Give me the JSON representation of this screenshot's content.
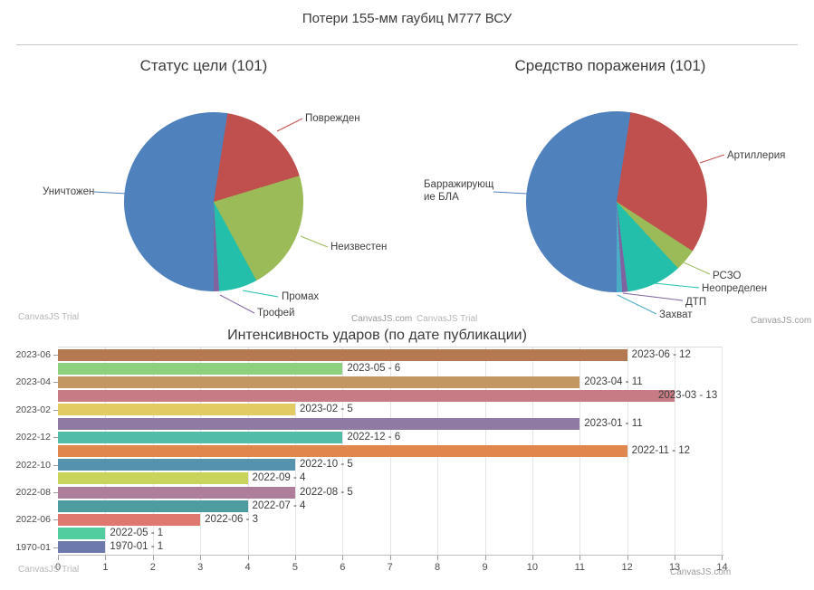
{
  "page": {
    "title": "Потери 155-мм гаубиц M777 ВСУ"
  },
  "watermarks": {
    "trial": "CanvasJS Trial",
    "site": "CanvasJS.com"
  },
  "chart_data": [
    {
      "type": "pie",
      "title": "Статус цели (101)",
      "total": 101,
      "start_angle_deg": 180,
      "legend_position": "none",
      "slices": [
        {
          "label": "Уничтожен",
          "value": 53,
          "color": "#4F81BC"
        },
        {
          "label": "Поврежден",
          "value": 18,
          "color": "#C0504E"
        },
        {
          "label": "Неизвестен",
          "value": 22,
          "color": "#9BBB58"
        },
        {
          "label": "Промах",
          "value": 7,
          "color": "#23BFAA"
        },
        {
          "label": "Трофей",
          "value": 1,
          "color": "#8064A1"
        }
      ]
    },
    {
      "type": "pie",
      "title": "Средство поражения (101)",
      "total": 101,
      "start_angle_deg": 180,
      "legend_position": "none",
      "slices": [
        {
          "label": "Барражирующие БЛА",
          "value": 53,
          "color": "#4F81BC"
        },
        {
          "label": "Артиллерия",
          "value": 32,
          "color": "#C0504E"
        },
        {
          "label": "РСЗО",
          "value": 4,
          "color": "#9BBB58"
        },
        {
          "label": "Неопределен",
          "value": 10,
          "color": "#23BFAA"
        },
        {
          "label": "ДТП",
          "value": 1,
          "color": "#8064A1"
        },
        {
          "label": "Захват",
          "value": 1,
          "color": "#4AACC5"
        }
      ]
    },
    {
      "type": "bar",
      "title": "Интенсивность ударов (по дате публикации)",
      "xlabel": "",
      "ylabel": "",
      "xlim": [
        0,
        14
      ],
      "grid": true,
      "x_ticks": [
        0,
        1,
        2,
        3,
        4,
        5,
        6,
        7,
        8,
        9,
        10,
        11,
        12,
        13,
        14
      ],
      "y_axis_labels": [
        "2023-06",
        "2023-04",
        "2023-02",
        "2022-12",
        "2022-10",
        "2022-08",
        "2022-06",
        "1970-01"
      ],
      "bars": [
        {
          "category": "2023-06",
          "value": 12,
          "label": "2023-06 - 12",
          "color": "#B57952"
        },
        {
          "category": "2023-05",
          "value": 6,
          "label": "2023-05 - 6",
          "color": "#8DD17E"
        },
        {
          "category": "2023-04",
          "value": 11,
          "label": "2023-04 - 11",
          "color": "#C39762"
        },
        {
          "category": "2023-03",
          "value": 13,
          "label": "2023-03 - 13",
          "color": "#C77B85"
        },
        {
          "category": "2023-02",
          "value": 5,
          "label": "2023-02 - 5",
          "color": "#E3CB64"
        },
        {
          "category": "2023-01",
          "value": 11,
          "label": "2023-01 - 11",
          "color": "#8E7AA3"
        },
        {
          "category": "2022-12",
          "value": 6,
          "label": "2022-12 - 6",
          "color": "#52BCA8"
        },
        {
          "category": "2022-11",
          "value": 12,
          "label": "2022-11 - 12",
          "color": "#DF874D"
        },
        {
          "category": "2022-10",
          "value": 5,
          "label": "2022-10 - 5",
          "color": "#5592AD"
        },
        {
          "category": "2022-09",
          "value": 4,
          "label": "2022-09 - 4",
          "color": "#C9D45C"
        },
        {
          "category": "2022-08",
          "value": 5,
          "label": "2022-08 - 5",
          "color": "#AE7D99"
        },
        {
          "category": "2022-07",
          "value": 4,
          "label": "2022-07 - 4",
          "color": "#4C9CA0"
        },
        {
          "category": "2022-06",
          "value": 3,
          "label": "2022-06 - 3",
          "color": "#DF7970"
        },
        {
          "category": "2022-05",
          "value": 1,
          "label": "2022-05 - 1",
          "color": "#51CDA0"
        },
        {
          "category": "1970-01",
          "value": 1,
          "label": "1970-01 - 1",
          "color": "#6D78AD"
        }
      ]
    }
  ]
}
